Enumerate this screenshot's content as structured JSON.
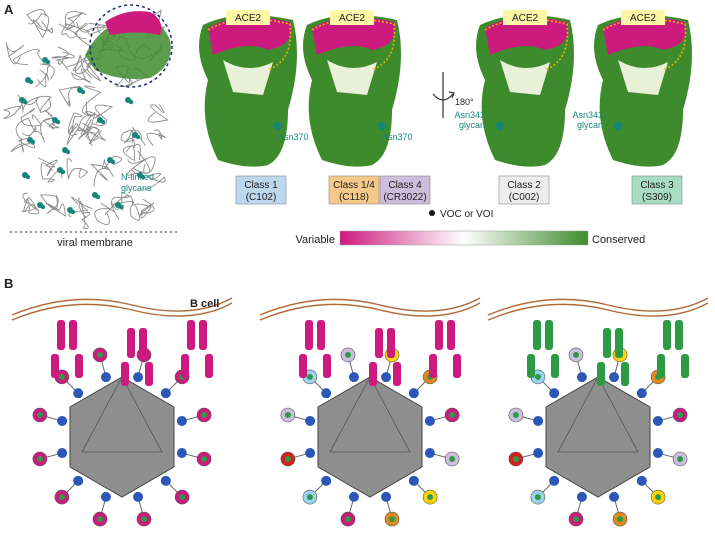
{
  "panels": {
    "a": "A",
    "b": "B"
  },
  "spike": {
    "glycan_label": "N-linked\nglycans",
    "membrane_label": "viral membrane"
  },
  "rbd_views": [
    {
      "ace2": "ACE2",
      "residue": "Asn370"
    },
    {
      "ace2": "ACE2",
      "residue": "Asn370"
    },
    {
      "ace2": "ACE2",
      "residue": "Asn343\nglycan"
    },
    {
      "ace2": "ACE2",
      "residue": "Asn343\nglycan"
    }
  ],
  "rotation_label": "180°",
  "classes": [
    {
      "name": "Class 1",
      "antibody": "(C102)",
      "color": "#bcd7ee"
    },
    {
      "name": "Class 1/4",
      "antibody": "(C118)",
      "color": "#f6c98b"
    },
    {
      "name": "Class 4",
      "antibody": "(CR3022)",
      "color": "#cdbddd"
    },
    {
      "name": "Class 2",
      "antibody": "(C002)",
      "color": "#ededed"
    },
    {
      "name": "Class 3",
      "antibody": "(S309)",
      "color": "#a8dcc4"
    }
  ],
  "legend": {
    "voc_label": "VOC or VOI",
    "low_label": "Variable",
    "high_label": "Conserved",
    "colors": [
      "#cc1a7e",
      "#ffffff",
      "#3e8b2e"
    ]
  },
  "b_cell_label": "B cell",
  "colors": {
    "magenta": "#cc1a7e",
    "green": "#2e9a45",
    "conserved": "#3e8b2e",
    "teal": "#17857a",
    "capsid": "#8f8f8f",
    "spike_blue": "#2b58b8"
  }
}
